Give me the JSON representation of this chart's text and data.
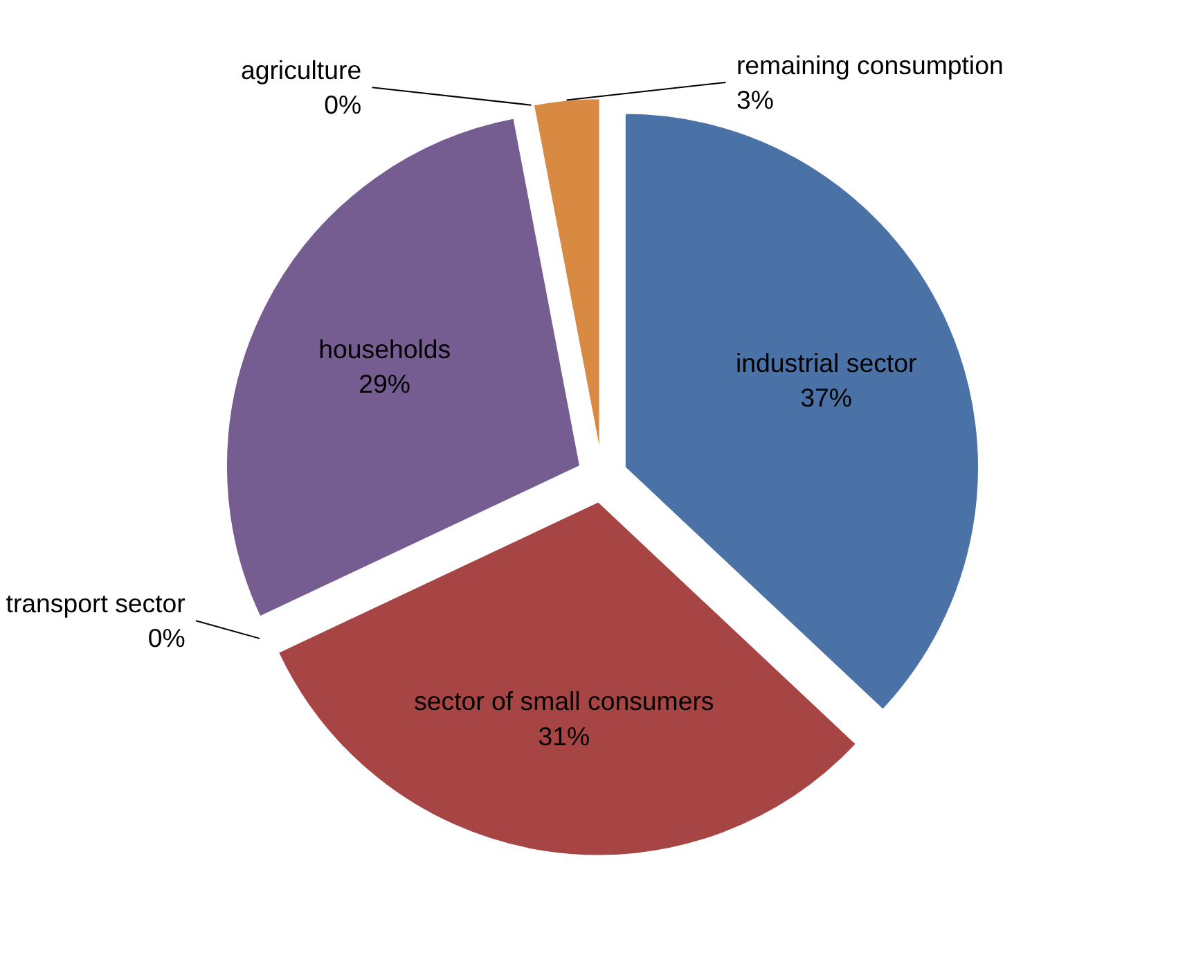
{
  "chart_data": {
    "type": "pie",
    "categories": [
      "industrial sector",
      "sector of small consumers",
      "transport sector",
      "households",
      "agriculture",
      "remaining consumption"
    ],
    "values": [
      37,
      31,
      0,
      29,
      0,
      3
    ],
    "value_labels": [
      "37%",
      "31%",
      "0%",
      "29%",
      "0%",
      "3%"
    ],
    "colors": [
      "#4a72a6",
      "#a64543",
      "#7f9a48",
      "#765d91",
      "#3e8ea5",
      "#d88a43"
    ]
  }
}
